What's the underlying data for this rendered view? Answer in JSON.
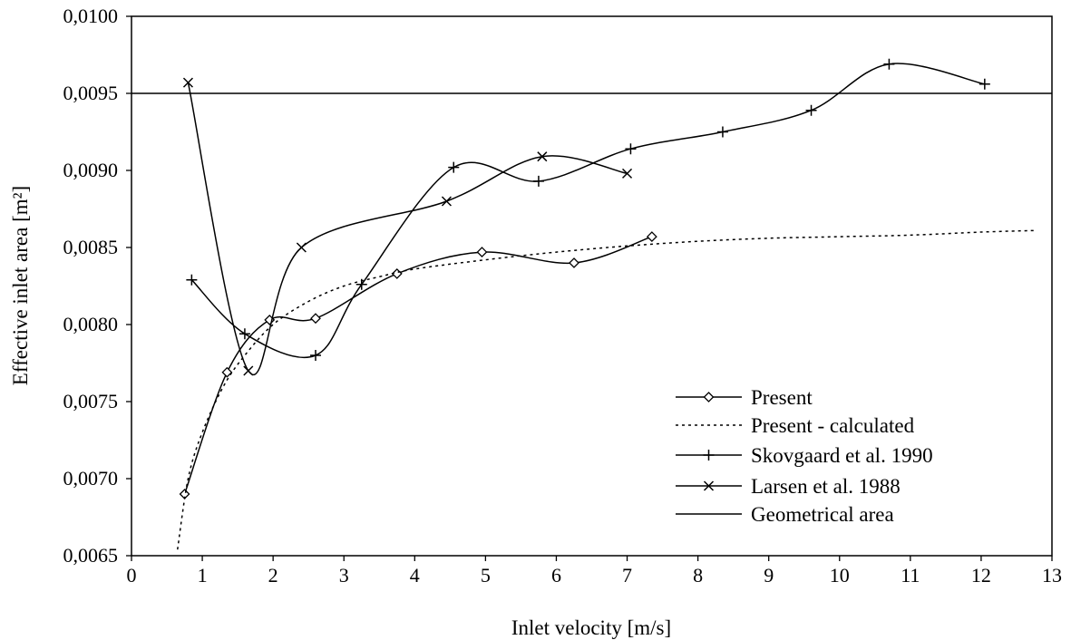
{
  "chart_data": {
    "type": "line",
    "xlabel": "Inlet velocity [m/s]",
    "ylabel": "Effective inlet area [m²]",
    "xlim": [
      0,
      13
    ],
    "ylim": [
      0.0065,
      0.01
    ],
    "x_ticks": [
      "0",
      "1",
      "2",
      "3",
      "4",
      "5",
      "6",
      "7",
      "8",
      "9",
      "10",
      "11",
      "12",
      "13"
    ],
    "y_ticks": [
      "0,0065",
      "0,0070",
      "0,0075",
      "0,0080",
      "0,0085",
      "0,0090",
      "0,0095",
      "0,0100"
    ],
    "grid": false,
    "legend_position": "bottom-right",
    "series": [
      {
        "name": "Present",
        "marker": "diamond",
        "style": "solid",
        "x": [
          0.75,
          1.35,
          1.95,
          2.6,
          3.75,
          4.95,
          6.25,
          7.35
        ],
        "y": [
          0.0069,
          0.00769,
          0.00803,
          0.00804,
          0.00833,
          0.00847,
          0.0084,
          0.00857
        ]
      },
      {
        "name": "Present - calculated",
        "marker": "none",
        "style": "dotted",
        "x": [
          0.65,
          0.8,
          1.0,
          1.3,
          1.6,
          2.0,
          2.5,
          3.0,
          3.5,
          4.0,
          5.0,
          6.0,
          7.0,
          8.0,
          9.0,
          10.0,
          11.0,
          12.0,
          12.75
        ],
        "y": [
          0.00654,
          0.007,
          0.0073,
          0.0076,
          0.0078,
          0.008,
          0.00815,
          0.00825,
          0.00831,
          0.00836,
          0.00842,
          0.00847,
          0.00851,
          0.00854,
          0.00856,
          0.00857,
          0.00858,
          0.0086,
          0.00861
        ]
      },
      {
        "name": "Skovgaard et al. 1990",
        "marker": "plus",
        "style": "solid",
        "x": [
          0.85,
          1.6,
          2.6,
          3.25,
          4.55,
          5.75,
          7.05,
          8.35,
          9.6,
          10.7,
          12.05
        ],
        "y": [
          0.00829,
          0.00794,
          0.0078,
          0.00826,
          0.00902,
          0.00893,
          0.00914,
          0.00925,
          0.00939,
          0.00969,
          0.00956
        ]
      },
      {
        "name": "Larsen et al. 1988",
        "marker": "cross",
        "style": "solid",
        "x": [
          0.8,
          1.65,
          2.4,
          4.45,
          5.8,
          7.0
        ],
        "y": [
          0.00957,
          0.0077,
          0.0085,
          0.0088,
          0.00909,
          0.00898
        ]
      },
      {
        "name": "Geometrical area",
        "marker": "none",
        "style": "solid",
        "x": [
          0,
          13
        ],
        "y": [
          0.0095,
          0.0095
        ]
      }
    ]
  }
}
